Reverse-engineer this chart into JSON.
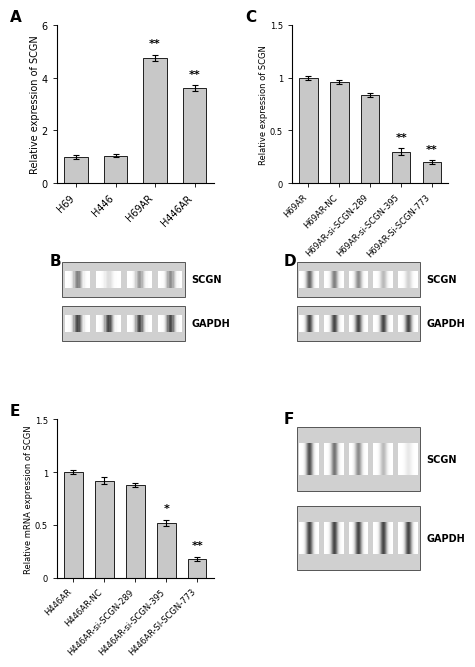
{
  "panel_A": {
    "categories": [
      "H69",
      "H446",
      "H69AR",
      "H446AR"
    ],
    "values": [
      1.0,
      1.05,
      4.75,
      3.6
    ],
    "errors": [
      0.08,
      0.06,
      0.12,
      0.12
    ],
    "ylabel": "Relative expression of SCGN",
    "ylim": [
      0,
      6
    ],
    "yticks": [
      0,
      2,
      4,
      6
    ],
    "significance": [
      "",
      "",
      "**",
      "**"
    ],
    "bar_color": "#c8c8c8",
    "label": "A"
  },
  "panel_C": {
    "categories": [
      "H69AR",
      "H69AR-NC",
      "H69AR-si-SCGN-289",
      "H69AR-si-SCGN-395",
      "H69AR-Si-SCGN-773"
    ],
    "values": [
      1.0,
      0.96,
      0.84,
      0.3,
      0.2
    ],
    "errors": [
      0.02,
      0.02,
      0.02,
      0.03,
      0.02
    ],
    "ylabel": "Relative expression of SCGN",
    "ylim": [
      0.0,
      1.5
    ],
    "yticks": [
      0.0,
      0.5,
      1.0,
      1.5
    ],
    "significance": [
      "",
      "",
      "",
      "**",
      "**"
    ],
    "bar_color": "#c8c8c8",
    "label": "C"
  },
  "panel_E": {
    "categories": [
      "H446AR",
      "H446AR-NC",
      "H446AR-si-SCGN-289",
      "H446AR-si-SCGN-395",
      "H446AR-SI-SCGN-773"
    ],
    "values": [
      1.0,
      0.92,
      0.88,
      0.52,
      0.18
    ],
    "errors": [
      0.02,
      0.03,
      0.02,
      0.03,
      0.02
    ],
    "ylabel": "Relative mRNA expression of SCGN",
    "ylim": [
      0.0,
      1.5
    ],
    "yticks": [
      0.0,
      0.5,
      1.0,
      1.5
    ],
    "significance": [
      "",
      "",
      "",
      "*",
      "**"
    ],
    "bar_color": "#c8c8c8",
    "label": "E"
  },
  "panel_B": {
    "label": "B",
    "scgn_label": "SCGN",
    "gapdh_label": "GAPDH",
    "num_lanes": 4,
    "scgn_intensities": [
      0.55,
      0.15,
      0.45,
      0.5
    ],
    "gapdh_intensities": [
      0.8,
      0.8,
      0.8,
      0.8
    ]
  },
  "panel_D": {
    "label": "D",
    "scgn_label": "SCGN",
    "gapdh_label": "GAPDH",
    "num_lanes": 5,
    "scgn_intensities": [
      0.65,
      0.55,
      0.5,
      0.3,
      0.2
    ],
    "gapdh_intensities": [
      0.8,
      0.8,
      0.8,
      0.8,
      0.8
    ]
  },
  "panel_F": {
    "label": "F",
    "scgn_label": "SCGN",
    "gapdh_label": "GAPDH",
    "num_lanes": 5,
    "scgn_intensities": [
      0.75,
      0.6,
      0.5,
      0.3,
      0.1
    ],
    "gapdh_intensities": [
      0.8,
      0.8,
      0.8,
      0.8,
      0.8
    ]
  },
  "figure_bg": "#ffffff",
  "font_size_tick_A": 7,
  "font_size_tick_small": 6,
  "font_size_ylabel_A": 7,
  "font_size_ylabel_small": 6,
  "font_size_sig": 8,
  "font_size_panel_label": 11
}
